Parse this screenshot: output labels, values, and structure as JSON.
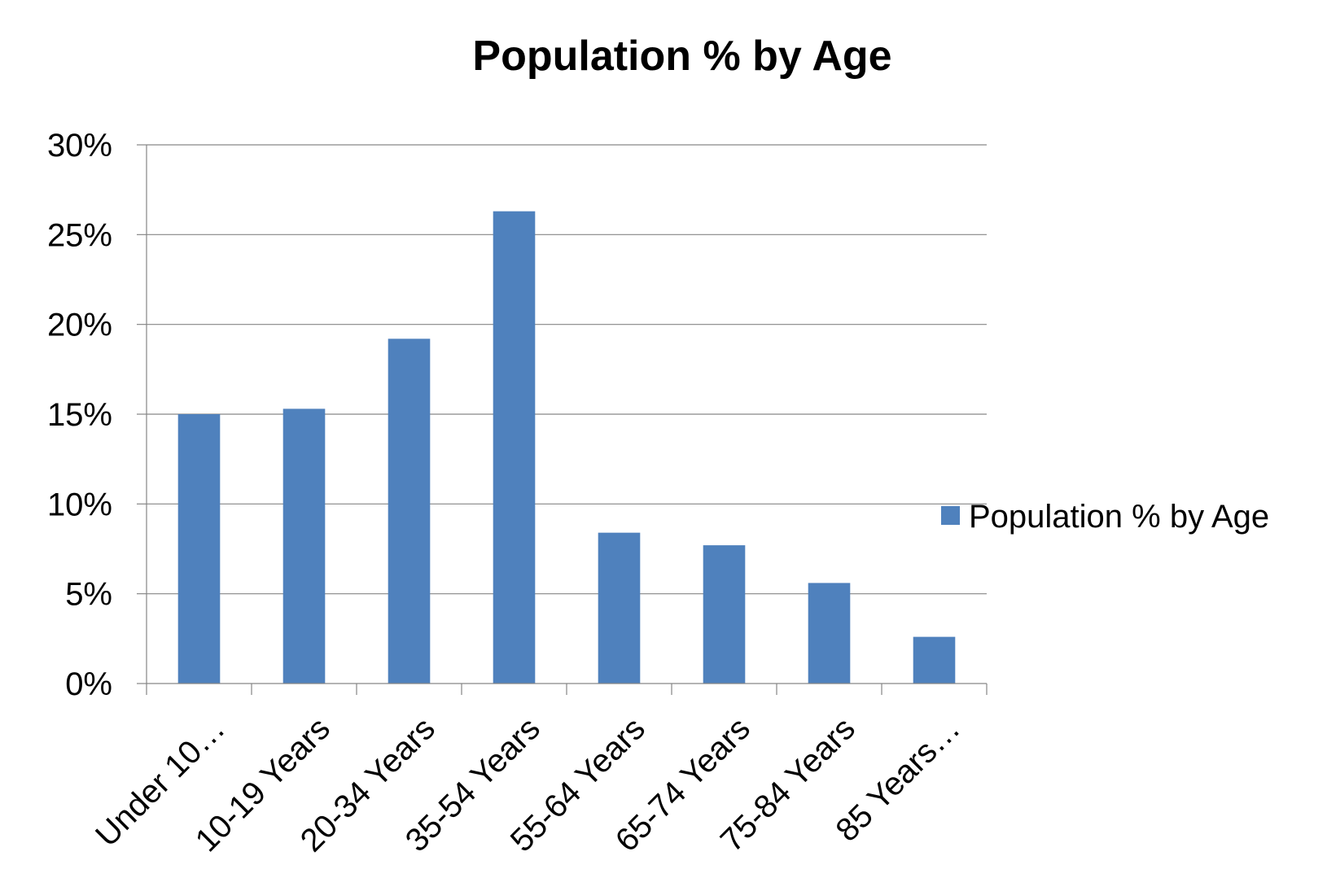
{
  "chart_data": {
    "type": "bar",
    "title": "Population % by Age",
    "categories": [
      "Under 10…",
      "10-19 Years",
      "20-34 Years",
      "35-54 Years",
      "55-64 Years",
      "65-74 Years",
      "75-84 Years",
      "85 Years…"
    ],
    "series": [
      {
        "name": "Population % by Age",
        "values": [
          15.0,
          15.3,
          19.2,
          26.3,
          8.4,
          7.7,
          5.6,
          2.6
        ]
      }
    ],
    "ylim": [
      0,
      30
    ],
    "yticks": [
      "0%",
      "5%",
      "10%",
      "15%",
      "20%",
      "25%",
      "30%"
    ],
    "grid": true,
    "legend_position": "right",
    "colors": {
      "bar": "#4F81BD",
      "grid": "#868686",
      "axis": "#868686"
    }
  }
}
